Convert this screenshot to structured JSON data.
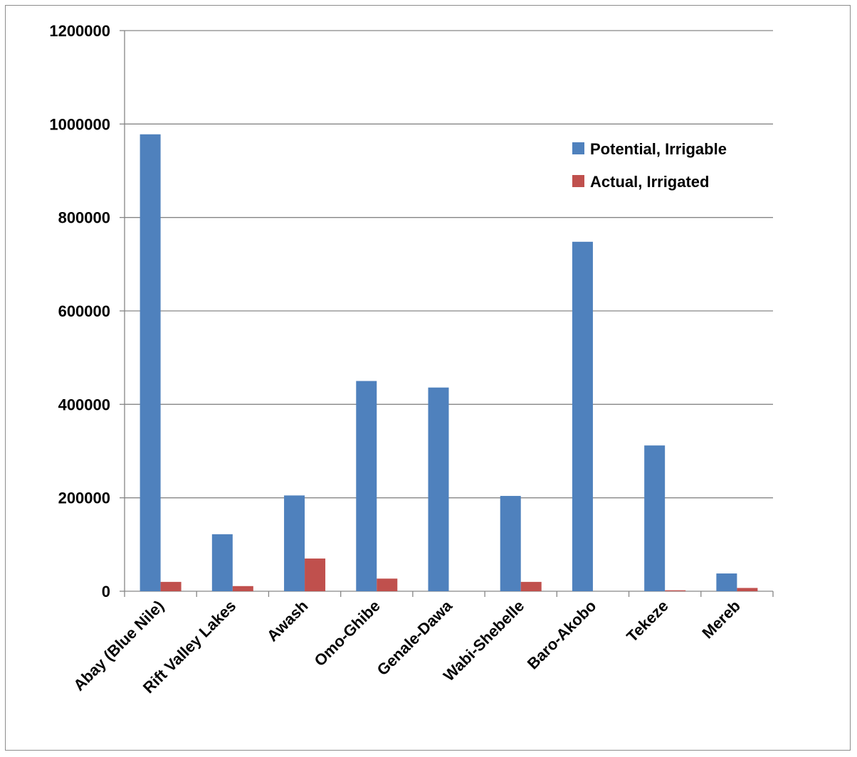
{
  "chart_data": {
    "type": "bar",
    "title": "",
    "xlabel": "",
    "ylabel": "",
    "categories": [
      "Abay (Blue Nile)",
      "Rift Valley Lakes",
      "Awash",
      "Omo-Ghibe",
      "Genale-Dawa",
      "Wabi-Shebelle",
      "Baro-Akobo",
      "Tekeze",
      "Mereb"
    ],
    "series": [
      {
        "name": "Potential, Irrigable",
        "color": "#4F81BD",
        "values": [
          978000,
          122000,
          205000,
          450000,
          436000,
          204000,
          748000,
          312000,
          38000
        ]
      },
      {
        "name": "Actual, Irrigated",
        "color": "#C0504D",
        "values": [
          20000,
          11000,
          70000,
          27000,
          0,
          20000,
          0,
          2000,
          7000
        ]
      }
    ],
    "ylim": [
      0,
      1200000
    ],
    "yticks": [
      "0",
      "200000",
      "400000",
      "600000",
      "800000",
      "1000000",
      "1200000"
    ],
    "grid": true,
    "legend_position": "top-right"
  }
}
